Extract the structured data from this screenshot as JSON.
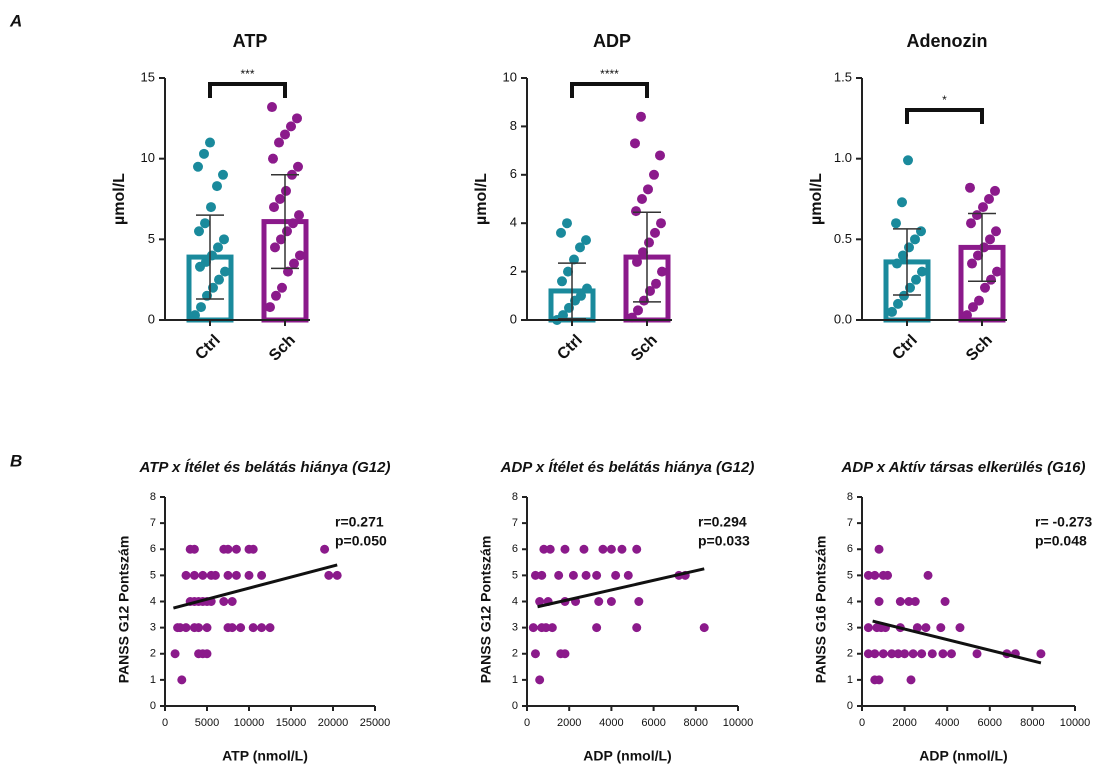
{
  "chart_data": [
    {
      "type": "bar",
      "panel_label": "A",
      "title": "ATP",
      "ylabel": "µmol/L",
      "categories": [
        "Ctrl",
        "Sch"
      ],
      "values": [
        3.9,
        6.1
      ],
      "errors": [
        2.6,
        2.9
      ],
      "colors": [
        "#1a8a9c",
        "#8b1a8b"
      ],
      "points": [
        [
          0.3,
          0.8,
          1.5,
          2,
          2.5,
          3,
          3.3,
          3.6,
          4,
          4.5,
          5,
          5.5,
          6,
          7,
          8.3,
          9,
          9.5,
          10.3,
          11
        ],
        [
          0.8,
          1.5,
          2,
          3,
          3.5,
          4,
          4.5,
          5,
          5.5,
          6,
          6.5,
          7,
          7.5,
          8,
          9,
          9.5,
          10,
          11,
          11.5,
          12,
          12.5,
          13.2
        ]
      ],
      "annotation": "***",
      "ylim": [
        0,
        15
      ],
      "yticks": [
        0,
        5,
        10,
        15
      ]
    },
    {
      "type": "bar",
      "title": "ADP",
      "ylabel": "µmol/L",
      "categories": [
        "Ctrl",
        "Sch"
      ],
      "values": [
        1.2,
        2.6
      ],
      "errors": [
        1.15,
        1.85
      ],
      "colors": [
        "#1a8a9c",
        "#8b1a8b"
      ],
      "points": [
        [
          0,
          0.2,
          0.5,
          0.8,
          1,
          1.3,
          1.6,
          2,
          2.5,
          3,
          3.3,
          3.6,
          4
        ],
        [
          0.1,
          0.4,
          0.8,
          1.2,
          1.5,
          2,
          2.4,
          2.8,
          3.2,
          3.6,
          4,
          4.5,
          5,
          5.4,
          6,
          6.8,
          7.3,
          8.4
        ]
      ],
      "annotation": "****",
      "ylim": [
        0,
        10
      ],
      "yticks": [
        0,
        2,
        4,
        6,
        8,
        10
      ]
    },
    {
      "type": "bar",
      "title": "Adenozin",
      "ylabel": "µmol/L",
      "categories": [
        "Ctrl",
        "Sch"
      ],
      "values": [
        0.36,
        0.45
      ],
      "errors": [
        0.205,
        0.21
      ],
      "colors": [
        "#1a8a9c",
        "#8b1a8b"
      ],
      "points": [
        [
          0.05,
          0.1,
          0.15,
          0.2,
          0.25,
          0.3,
          0.35,
          0.4,
          0.45,
          0.5,
          0.55,
          0.6,
          0.73,
          0.99
        ],
        [
          0.03,
          0.08,
          0.12,
          0.2,
          0.25,
          0.3,
          0.35,
          0.4,
          0.45,
          0.5,
          0.55,
          0.6,
          0.65,
          0.7,
          0.75,
          0.8,
          0.82
        ]
      ],
      "annotation": "*",
      "ylim": [
        0,
        1.5
      ],
      "yticks": [
        {
          "value": 0,
          "label": "0.0"
        },
        0.5,
        {
          "value": 1,
          "label": "1.0"
        },
        1.5
      ]
    },
    {
      "type": "scatter",
      "panel_label": "B",
      "title": "ATP x Ítélet és belátás hiánya  (G12)",
      "xlabel": "ATP (nmol/L)",
      "ylabel": "PANSS G12 Pontszám",
      "color": "#8b1a8b",
      "x": [
        2000,
        1200,
        1500,
        1800,
        2500,
        3500,
        4000,
        5000,
        7500,
        8000,
        9000,
        10500,
        11500,
        12500,
        3000,
        3500,
        4000,
        4500,
        5000,
        5500,
        7000,
        8000,
        2500,
        3500,
        4500,
        5500,
        6000,
        7500,
        8500,
        10000,
        11500,
        19500,
        20500,
        3000,
        3500,
        7000,
        7500,
        8500,
        10000,
        10500,
        19000,
        4000,
        4500,
        5000
      ],
      "y": [
        1,
        2,
        3,
        3,
        3,
        3,
        3,
        3,
        3,
        3,
        3,
        3,
        3,
        3,
        4,
        4,
        4,
        4,
        4,
        4,
        4,
        4,
        5,
        5,
        5,
        5,
        5,
        5,
        5,
        5,
        5,
        5,
        5,
        6,
        6,
        6,
        6,
        6,
        6,
        6,
        6,
        2,
        2,
        2
      ],
      "fit": {
        "x": [
          1000,
          20500
        ],
        "y": [
          3.75,
          5.4
        ]
      },
      "annotations": [
        "r=0.271",
        "p=0.050"
      ],
      "xlim": [
        0,
        25000
      ],
      "xticks": [
        0,
        5000,
        10000,
        15000,
        20000,
        25000
      ],
      "ylim": [
        0,
        8
      ],
      "yticks": [
        0,
        1,
        2,
        3,
        4,
        5,
        6,
        7,
        8
      ]
    },
    {
      "type": "scatter",
      "title": "ADP x Ítélet és belátás hiánya (G12)",
      "xlabel": "ADP (nmol/L)",
      "ylabel": "PANSS G12 Pontszám",
      "color": "#8b1a8b",
      "x": [
        600,
        400,
        1600,
        1800,
        300,
        700,
        900,
        1200,
        3300,
        5200,
        8400,
        600,
        1000,
        1800,
        2300,
        3400,
        4000,
        5300,
        400,
        700,
        1500,
        2200,
        2800,
        3300,
        4200,
        4800,
        7200,
        7500,
        800,
        1100,
        1800,
        2700,
        3600,
        4000,
        4500,
        5200
      ],
      "y": [
        1,
        2,
        2,
        2,
        3,
        3,
        3,
        3,
        3,
        3,
        3,
        4,
        4,
        4,
        4,
        4,
        4,
        4,
        5,
        5,
        5,
        5,
        5,
        5,
        5,
        5,
        5,
        5,
        6,
        6,
        6,
        6,
        6,
        6,
        6,
        6
      ],
      "fit": {
        "x": [
          500,
          8400
        ],
        "y": [
          3.8,
          5.25
        ]
      },
      "annotations": [
        "r=0.294",
        "p=0.033"
      ],
      "xlim": [
        0,
        10000
      ],
      "xticks": [
        0,
        2000,
        4000,
        6000,
        8000,
        10000
      ],
      "ylim": [
        0,
        8
      ],
      "yticks": [
        0,
        1,
        2,
        3,
        4,
        5,
        6,
        7,
        8
      ]
    },
    {
      "type": "scatter",
      "title": "ADP x Aktív társas elkerülés (G16)",
      "xlabel": "ADP (nmol/L)",
      "ylabel": "PANSS G16 Pontszám",
      "color": "#8b1a8b",
      "x": [
        600,
        800,
        2300,
        300,
        600,
        1000,
        1400,
        1700,
        2000,
        2400,
        2800,
        3300,
        3800,
        4200,
        5400,
        6800,
        7200,
        8400,
        300,
        700,
        900,
        1800,
        2600,
        3000,
        3700,
        4600,
        1100,
        800,
        1800,
        2200,
        2500,
        3900,
        300,
        600,
        1000,
        1200,
        3100,
        800
      ],
      "y": [
        1,
        1,
        1,
        2,
        2,
        2,
        2,
        2,
        2,
        2,
        2,
        2,
        2,
        2,
        2,
        2,
        2,
        2,
        3,
        3,
        3,
        3,
        3,
        3,
        3,
        3,
        3,
        4,
        4,
        4,
        4,
        4,
        5,
        5,
        5,
        5,
        5,
        6
      ],
      "fit": {
        "x": [
          500,
          8400
        ],
        "y": [
          3.25,
          1.65
        ]
      },
      "annotations": [
        "r= -0.273",
        "p=0.048"
      ],
      "xlim": [
        0,
        10000
      ],
      "xticks": [
        0,
        2000,
        4000,
        6000,
        8000,
        10000
      ],
      "ylim": [
        0,
        8
      ],
      "yticks": [
        0,
        1,
        2,
        3,
        4,
        5,
        6,
        7,
        8
      ]
    }
  ]
}
